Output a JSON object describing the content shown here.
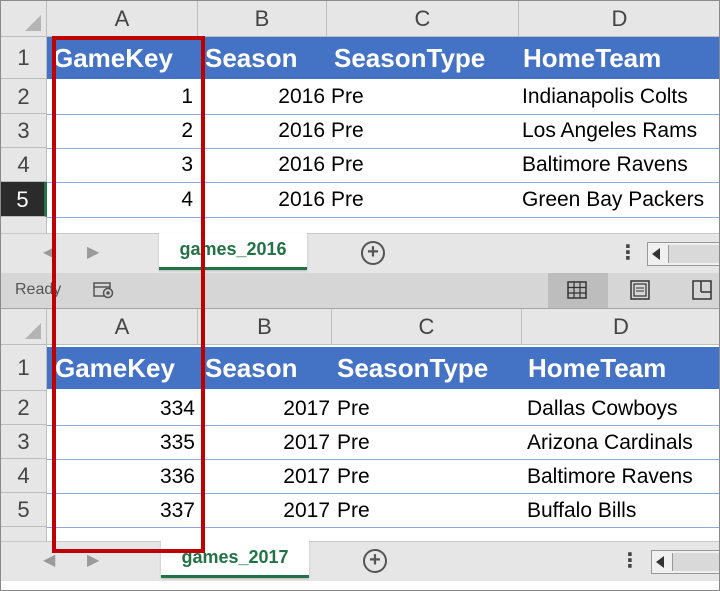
{
  "columns": [
    "A",
    "B",
    "C",
    "D"
  ],
  "rows": [
    "1",
    "2",
    "3",
    "4",
    "5"
  ],
  "headers": [
    "GameKey",
    "Season",
    "SeasonType",
    "HomeTeam"
  ],
  "sheet1": {
    "tab": "games_2016",
    "data": [
      {
        "key": "1",
        "season": "2016",
        "type": "Pre",
        "team": "Indianapolis Colts"
      },
      {
        "key": "2",
        "season": "2016",
        "type": "Pre",
        "team": "Los Angeles Rams"
      },
      {
        "key": "3",
        "season": "2016",
        "type": "Pre",
        "team": "Baltimore Ravens"
      },
      {
        "key": "4",
        "season": "2016",
        "type": "Pre",
        "team": "Green Bay Packers"
      }
    ]
  },
  "sheet2": {
    "tab": "games_2017",
    "data": [
      {
        "key": "334",
        "season": "2017",
        "type": "Pre",
        "team": "Dallas Cowboys"
      },
      {
        "key": "335",
        "season": "2017",
        "type": "Pre",
        "team": "Arizona Cardinals"
      },
      {
        "key": "336",
        "season": "2017",
        "type": "Pre",
        "team": "Baltimore Ravens"
      },
      {
        "key": "337",
        "season": "2017",
        "type": "Pre",
        "team": "Buffalo Bills"
      }
    ]
  },
  "status": {
    "ready": "Ready"
  },
  "icons": {
    "add": "plus-circle-icon",
    "more": "more-vertical-icon"
  },
  "colors": {
    "header_fill": "#4472c4",
    "accent": "#217346",
    "highlight": "#c00000"
  }
}
